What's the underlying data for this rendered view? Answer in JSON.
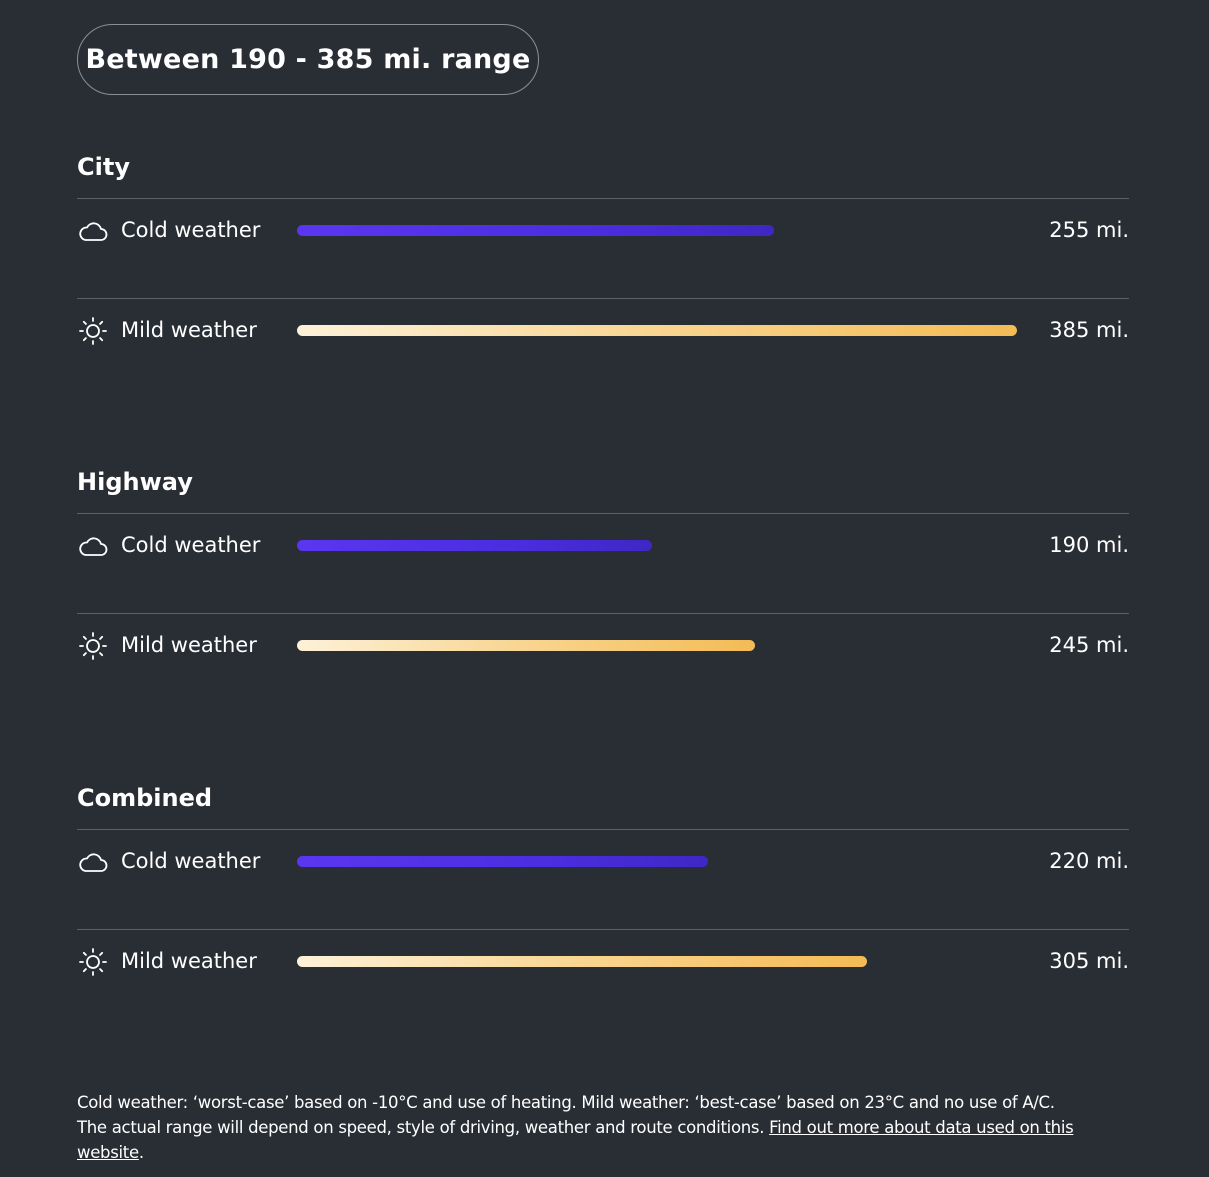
{
  "range_summary": "Between 190 - 385 mi. range",
  "colors": {
    "background": "#292e35",
    "cold_bar": "#4b2ee0",
    "mild_bar_start": "#fdf1d8",
    "mild_bar_end": "#f4bb55",
    "divider": "#5c6168"
  },
  "icons": {
    "cold": "cloud-icon",
    "mild": "sun-icon"
  },
  "chart_data": {
    "type": "bar",
    "unit": "mi.",
    "xlim": [
      0,
      385
    ],
    "groups": [
      {
        "title": "City",
        "rows": [
          {
            "label": "Cold weather",
            "icon": "cloud-icon",
            "kind": "cold",
            "value": 255,
            "value_text": "255 mi."
          },
          {
            "label": "Mild weather",
            "icon": "sun-icon",
            "kind": "mild",
            "value": 385,
            "value_text": "385 mi."
          }
        ]
      },
      {
        "title": "Highway",
        "rows": [
          {
            "label": "Cold weather",
            "icon": "cloud-icon",
            "kind": "cold",
            "value": 190,
            "value_text": "190 mi."
          },
          {
            "label": "Mild weather",
            "icon": "sun-icon",
            "kind": "mild",
            "value": 245,
            "value_text": "245 mi."
          }
        ]
      },
      {
        "title": "Combined",
        "rows": [
          {
            "label": "Cold weather",
            "icon": "cloud-icon",
            "kind": "cold",
            "value": 220,
            "value_text": "220 mi."
          },
          {
            "label": "Mild weather",
            "icon": "sun-icon",
            "kind": "mild",
            "value": 305,
            "value_text": "305 mi."
          }
        ]
      }
    ]
  },
  "footnote": {
    "line1": "Cold weather: ‘worst-case’ based on -10°C and use of heating. Mild weather: ‘best-case’ based on 23°C and no use of A/C.",
    "line2": "The actual range will depend on speed, style of driving, weather and route conditions. ",
    "link_text": "Find out more about data used on this website",
    "end": "."
  }
}
